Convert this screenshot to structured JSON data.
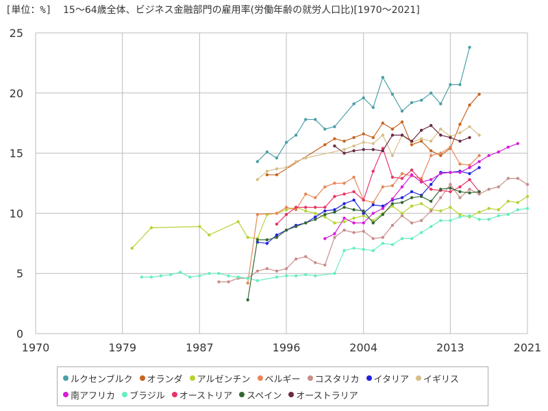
{
  "unit_label": "[単位：%]",
  "title": "15～64歳全体、ビジネス金融部門の雇用率(労働年齢の就労人口比)[1970～2021]",
  "chart_data": {
    "type": "line",
    "xlim": [
      1970,
      2021
    ],
    "ylim": [
      0,
      25
    ],
    "xticks": [
      1970,
      1979,
      1987,
      1996,
      2004,
      2013,
      2021
    ],
    "yticks": [
      0,
      5,
      10,
      15,
      20,
      25
    ],
    "grid": true,
    "legend_position": "bottom",
    "series": [
      {
        "name": "ルクセンブルク",
        "color": "#4a9fa8",
        "x": [
          1993,
          1994,
          1995,
          1996,
          1997,
          1998,
          1999,
          2000,
          2001,
          2003,
          2004,
          2005,
          2006,
          2007,
          2008,
          2009,
          2010,
          2011,
          2012,
          2013,
          2014,
          2015,
          2016
        ],
        "y": [
          14.3,
          15.1,
          14.6,
          15.9,
          16.5,
          17.8,
          17.8,
          17.0,
          17.2,
          19.1,
          19.6,
          18.8,
          21.3,
          19.9,
          18.5,
          19.2,
          19.4,
          20.0,
          19.1,
          20.7,
          20.7,
          23.8,
          null
        ]
      },
      {
        "name": "オランダ",
        "color": "#c8641e",
        "x": [
          1994,
          1995,
          2000,
          2001,
          2002,
          2003,
          2004,
          2005,
          2006,
          2007,
          2008,
          2009,
          2010,
          2011,
          2012,
          2013,
          2014,
          2015,
          2016
        ],
        "y": [
          13.2,
          13.2,
          15.7,
          16.2,
          16.0,
          16.3,
          16.6,
          16.3,
          17.5,
          17.0,
          17.6,
          15.7,
          16.0,
          15.2,
          14.8,
          15.4,
          17.4,
          19.0,
          19.9
        ]
      },
      {
        "name": "アルゼンチン",
        "color": "#b5d334",
        "x": [
          1980,
          1982,
          1987,
          1988,
          1991,
          1992,
          1993,
          1994,
          1995,
          1996,
          1997,
          1998,
          1999,
          2000,
          2001,
          2002,
          2003,
          2004,
          2005,
          2006,
          2007,
          2008,
          2009,
          2010,
          2011,
          2012,
          2013,
          2014,
          2015,
          2016,
          2017,
          2018,
          2019,
          2020,
          2021
        ],
        "y": [
          7.1,
          8.8,
          8.9,
          8.2,
          9.3,
          8.0,
          7.9,
          9.9,
          10.0,
          10.3,
          10.5,
          10.2,
          10.0,
          9.7,
          9.2,
          9.3,
          9.6,
          9.8,
          9.4,
          10.0,
          10.6,
          10.0,
          10.6,
          10.8,
          10.3,
          10.2,
          10.5,
          9.9,
          9.7,
          10.1,
          10.4,
          10.3,
          11.0,
          10.9,
          11.4
        ]
      },
      {
        "name": "ベルギー",
        "color": "#e88655",
        "x": [
          1992,
          1993,
          1995,
          1996,
          1997,
          1998,
          1999,
          2000,
          2001,
          2002,
          2003,
          2004,
          2005,
          2006,
          2007,
          2008,
          2009,
          2010,
          2011,
          2012,
          2013,
          2014,
          2015,
          2016
        ],
        "y": [
          4.2,
          9.9,
          10.0,
          10.5,
          10.3,
          11.6,
          11.3,
          12.2,
          12.5,
          12.5,
          13.0,
          11.1,
          10.9,
          12.2,
          12.3,
          13.3,
          13.1,
          12.9,
          14.8,
          15.0,
          15.5,
          14.1,
          14.0,
          14.8
        ]
      },
      {
        "name": "コスタリカ",
        "color": "#c88e8a",
        "x": [
          1989,
          1990,
          1991,
          1992,
          1993,
          1994,
          1995,
          1996,
          1997,
          1998,
          1999,
          2000,
          2001,
          2002,
          2003,
          2004,
          2005,
          2006,
          2007,
          2008,
          2009,
          2010,
          2011,
          2012,
          2013,
          2014,
          2015,
          2016,
          2017,
          2018,
          2019,
          2020,
          2021
        ],
        "y": [
          4.3,
          4.3,
          4.6,
          4.6,
          5.2,
          5.4,
          5.2,
          5.4,
          6.2,
          6.4,
          5.9,
          5.7,
          8.0,
          8.6,
          8.4,
          8.5,
          7.9,
          8.0,
          9.0,
          9.8,
          9.2,
          9.4,
          10.2,
          11.3,
          12.4,
          11.3,
          12.0,
          11.6,
          12.0,
          12.2,
          12.9,
          12.9,
          12.4
        ]
      },
      {
        "name": "イタリア",
        "color": "#2222dd",
        "x": [
          1993,
          1994,
          1995,
          1996,
          1997,
          1998,
          1999,
          2000,
          2001,
          2002,
          2003,
          2004,
          2005,
          2006,
          2007,
          2008,
          2009,
          2010,
          2011,
          2012,
          2013,
          2014,
          2015,
          2016
        ],
        "y": [
          7.6,
          7.5,
          8.2,
          8.6,
          9.0,
          9.2,
          9.7,
          10.2,
          10.3,
          10.8,
          11.1,
          10.0,
          10.7,
          10.6,
          11.1,
          11.3,
          11.8,
          11.5,
          12.4,
          13.4,
          13.4,
          13.5,
          13.3,
          13.8
        ]
      },
      {
        "name": "イギリス",
        "color": "#d8be8a",
        "x": [
          1993,
          1994,
          1995,
          1996,
          1997,
          1998,
          2002,
          2003,
          2004,
          2005,
          2006,
          2007,
          2008,
          2009,
          2010,
          2011,
          2012,
          2013,
          2014,
          2015,
          2016
        ],
        "y": [
          12.8,
          13.5,
          13.7,
          13.8,
          14.3,
          14.6,
          15.3,
          15.6,
          15.9,
          15.8,
          16.5,
          14.8,
          16.5,
          15.9,
          16.2,
          16.0,
          17.0,
          16.4,
          16.7,
          17.2,
          16.5
        ]
      },
      {
        "name": "南アフリカ",
        "color": "#d61fd6",
        "x": [
          2000,
          2001,
          2002,
          2003,
          2004,
          2005,
          2006,
          2007,
          2008,
          2009,
          2010,
          2011,
          2012,
          2013,
          2014,
          2015,
          2016,
          2017,
          2018,
          2019,
          2020
        ],
        "y": [
          7.9,
          8.3,
          9.6,
          9.2,
          9.2,
          10.0,
          10.4,
          11.2,
          12.2,
          13.2,
          12.6,
          12.8,
          13.3,
          13.4,
          13.4,
          13.8,
          14.3,
          14.8,
          15.1,
          15.5,
          15.8
        ]
      },
      {
        "name": "ブラジル",
        "color": "#66eebb",
        "x": [
          1981,
          1982,
          1983,
          1984,
          1985,
          1986,
          1987,
          1988,
          1989,
          1990,
          1991,
          1992,
          1993,
          1995,
          1996,
          1997,
          1998,
          1999,
          2001,
          2002,
          2003,
          2004,
          2005,
          2006,
          2007,
          2008,
          2009,
          2010,
          2011,
          2012,
          2013,
          2014,
          2015,
          2016,
          2017,
          2018,
          2019,
          2020,
          2021
        ],
        "y": [
          4.7,
          4.7,
          4.8,
          4.9,
          5.1,
          4.7,
          4.8,
          5.0,
          5.0,
          4.8,
          4.7,
          4.6,
          4.4,
          4.7,
          4.8,
          4.8,
          4.9,
          4.8,
          5.0,
          6.9,
          7.1,
          7.0,
          6.9,
          7.5,
          7.4,
          7.9,
          7.9,
          8.4,
          8.9,
          9.4,
          9.4,
          9.7,
          9.8,
          9.5,
          9.5,
          9.8,
          9.9,
          10.3,
          10.4
        ]
      },
      {
        "name": "オーストリア",
        "color": "#e83366",
        "x": [
          1995,
          1996,
          1997,
          1998,
          1999,
          2000,
          2001,
          2002,
          2003,
          2004,
          2005,
          2006,
          2007,
          2008,
          2009,
          2010,
          2011,
          2012,
          2013,
          2014,
          2015,
          2016
        ],
        "y": [
          9.1,
          9.9,
          10.5,
          10.5,
          10.5,
          10.5,
          11.4,
          11.6,
          11.8,
          11.1,
          13.5,
          15.4,
          13.0,
          12.9,
          13.6,
          12.7,
          12.0,
          11.9,
          11.8,
          12.2,
          12.8,
          11.8
        ]
      },
      {
        "name": "スペイン",
        "color": "#336633",
        "x": [
          1992,
          1993,
          1994,
          1995,
          1996,
          1997,
          1998,
          1999,
          2000,
          2001,
          2002,
          2003,
          2004,
          2005,
          2006,
          2007,
          2008,
          2009,
          2010,
          2011,
          2012,
          2013,
          2014,
          2015,
          2016
        ],
        "y": [
          2.8,
          7.8,
          7.8,
          8.0,
          8.6,
          8.9,
          9.2,
          9.5,
          9.9,
          10.1,
          10.5,
          10.3,
          10.2,
          9.2,
          9.9,
          10.8,
          10.9,
          11.3,
          11.4,
          11.0,
          12.0,
          12.1,
          11.8,
          11.7,
          11.8
        ]
      },
      {
        "name": "オーストラリア",
        "color": "#6a2a44",
        "x": [
          2001,
          2002,
          2003,
          2004,
          2005,
          2006,
          2007,
          2008,
          2009,
          2010,
          2011,
          2012,
          2013,
          2014,
          2015
        ],
        "y": [
          15.6,
          15.0,
          15.2,
          15.3,
          15.3,
          15.2,
          16.5,
          16.5,
          16.0,
          16.9,
          17.3,
          16.5,
          16.3,
          16.0,
          16.3
        ]
      }
    ]
  }
}
